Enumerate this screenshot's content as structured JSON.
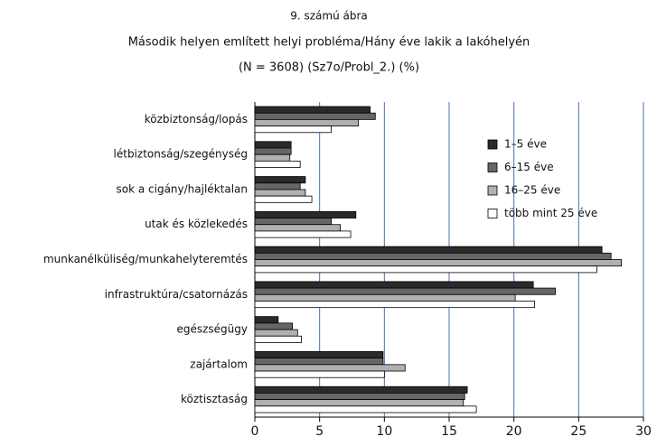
{
  "chart_data": {
    "type": "hbar",
    "pretitle": "9. számú ábra",
    "title": "Második helyen említett helyi probléma/Hány éve lakik a lakóhelyén",
    "subtitle": "(N = 3608) (Sz7o/Probl_2.) (%)",
    "categories": [
      "közbiztonság/lopás",
      "létbiztonság/szegénység",
      "sok a cigány/hajléktalan",
      "utak és közlekedés",
      "munkanélküliség/munkahelyteremtés",
      "infrastruktúra/csatornázás",
      "egészségügy",
      "zajártalom",
      "köztisztaság"
    ],
    "series": [
      {
        "name": "1–5 éve",
        "color": "#2a2a2a",
        "values": [
          8.9,
          2.8,
          3.9,
          7.8,
          26.8,
          21.5,
          1.8,
          9.9,
          16.4
        ]
      },
      {
        "name": "6–15 éve",
        "color": "#666666",
        "values": [
          9.3,
          2.8,
          3.5,
          5.9,
          27.5,
          23.2,
          2.9,
          9.9,
          16.2
        ]
      },
      {
        "name": "16–25 éve",
        "color": "#b0b0b0",
        "values": [
          8.0,
          2.7,
          3.9,
          6.6,
          28.3,
          20.1,
          3.3,
          11.6,
          16.1
        ]
      },
      {
        "name": "több mint 25 éve",
        "color": "#ffffff",
        "values": [
          5.9,
          3.5,
          4.4,
          7.4,
          26.4,
          21.6,
          3.6,
          10.0,
          17.1
        ]
      }
    ],
    "xlim": [
      0,
      30
    ],
    "xticks": [
      0,
      5,
      10,
      15,
      20,
      25,
      30
    ],
    "grid": true,
    "legend": "upper right"
  }
}
